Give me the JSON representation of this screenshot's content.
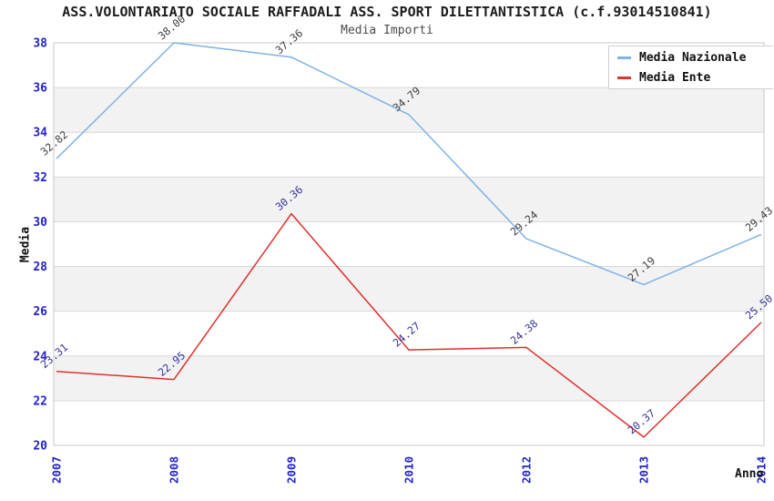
{
  "header": {
    "title": "ASS.VOLONTARIATO SOCIALE RAFFADALI ASS. SPORT DILETTANTISTICA (c.f.93014510841)",
    "subtitle": "Media Importi"
  },
  "legend": {
    "items": [
      {
        "label": "Media Nazionale",
        "color": "#7FB2E5"
      },
      {
        "label": "Media Ente",
        "color": "#E03030"
      }
    ]
  },
  "axes": {
    "y_title": "Media",
    "x_title": "Anno",
    "y_ticks": [
      "20",
      "22",
      "24",
      "26",
      "28",
      "30",
      "32",
      "34",
      "36",
      "38"
    ],
    "x_ticks": [
      "2007",
      "2008",
      "2009",
      "2010",
      "2012",
      "2013",
      "2014"
    ]
  },
  "chart_data": {
    "type": "line",
    "title": "ASS.VOLONTARIATO SOCIALE RAFFADALI ASS. SPORT DILETTANTISTICA (c.f.93014510841)",
    "subtitle": "Media Importi",
    "categories": [
      "2007",
      "2008",
      "2009",
      "2010",
      "2012",
      "2013",
      "2014"
    ],
    "series": [
      {
        "name": "Media Nazionale",
        "color": "#7FB2E5",
        "label_color": "#3C3C3C",
        "values": [
          32.82,
          38.0,
          37.36,
          34.79,
          29.24,
          27.19,
          29.43
        ]
      },
      {
        "name": "Media Ente",
        "color": "#E03030",
        "label_color": "#333399",
        "values": [
          23.31,
          22.95,
          30.36,
          24.27,
          24.38,
          20.37,
          25.5
        ]
      }
    ],
    "xlabel": "Anno",
    "ylabel": "Media",
    "ylim": [
      20,
      38
    ],
    "ytick_step": 2,
    "grid": true,
    "band_fill": "#F2F2F2",
    "gridline_color": "#D9D9D9",
    "plot_border_color": "#C9C9C9",
    "tick_label_color": "#2222CC",
    "legend_position": "top-right",
    "point_labels_rotation_deg": -40,
    "x_tick_rotation_deg": -90
  }
}
